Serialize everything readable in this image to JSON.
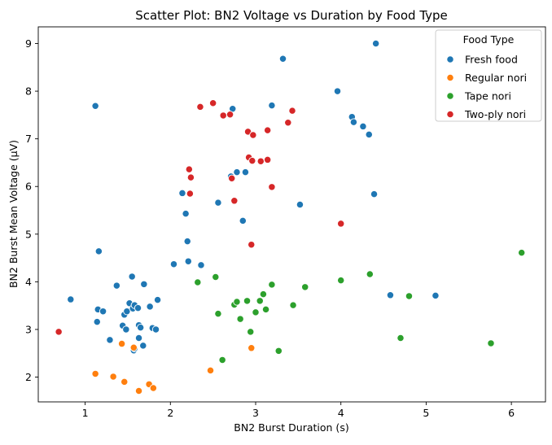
{
  "chart_data": {
    "type": "scatter",
    "title": "Scatter Plot: BN2 Voltage vs Duration by Food Type",
    "xlabel": "BN2 Burst Duration (s)",
    "ylabel": "BN2 Burst Mean Voltage (µV)",
    "xlim": [
      0.45,
      6.4
    ],
    "ylim": [
      1.48,
      9.35
    ],
    "xticks": [
      1,
      2,
      3,
      4,
      5,
      6
    ],
    "yticks": [
      2,
      3,
      4,
      5,
      6,
      7,
      8,
      9
    ],
    "grid": false,
    "legend": {
      "title": "Food Type",
      "placement": "top-right"
    },
    "series": [
      {
        "name": "Fresh food",
        "color": "#1f77b4",
        "points": [
          [
            0.83,
            3.63
          ],
          [
            1.12,
            7.69
          ],
          [
            1.14,
            3.16
          ],
          [
            1.15,
            3.42
          ],
          [
            1.16,
            4.64
          ],
          [
            1.21,
            3.38
          ],
          [
            1.29,
            2.78
          ],
          [
            1.37,
            3.92
          ],
          [
            1.44,
            3.08
          ],
          [
            1.46,
            3.31
          ],
          [
            1.48,
            3.0
          ],
          [
            1.49,
            3.38
          ],
          [
            1.52,
            3.55
          ],
          [
            1.55,
            4.11
          ],
          [
            1.56,
            3.44
          ],
          [
            1.57,
            2.56
          ],
          [
            1.58,
            2.6
          ],
          [
            1.58,
            3.51
          ],
          [
            1.62,
            3.45
          ],
          [
            1.63,
            3.09
          ],
          [
            1.63,
            2.82
          ],
          [
            1.65,
            3.04
          ],
          [
            1.68,
            2.66
          ],
          [
            1.69,
            3.95
          ],
          [
            1.76,
            3.48
          ],
          [
            1.79,
            3.03
          ],
          [
            1.83,
            3.0
          ],
          [
            1.85,
            3.62
          ],
          [
            2.04,
            4.37
          ],
          [
            2.14,
            5.86
          ],
          [
            2.18,
            5.43
          ],
          [
            2.2,
            4.85
          ],
          [
            2.21,
            4.43
          ],
          [
            2.36,
            4.35
          ],
          [
            2.56,
            5.66
          ],
          [
            2.71,
            6.21
          ],
          [
            2.73,
            7.63
          ],
          [
            2.78,
            6.3
          ],
          [
            2.85,
            5.28
          ],
          [
            2.88,
            6.3
          ],
          [
            3.19,
            7.7
          ],
          [
            3.32,
            8.68
          ],
          [
            3.52,
            5.62
          ],
          [
            3.96,
            8.0
          ],
          [
            4.13,
            7.46
          ],
          [
            4.15,
            7.35
          ],
          [
            4.26,
            7.26
          ],
          [
            4.33,
            7.09
          ],
          [
            4.39,
            5.84
          ],
          [
            4.41,
            9.0
          ],
          [
            4.58,
            3.72
          ],
          [
            5.11,
            3.71
          ]
        ]
      },
      {
        "name": "Regular nori",
        "color": "#ff7f0e",
        "points": [
          [
            1.12,
            2.07
          ],
          [
            1.33,
            2.01
          ],
          [
            1.43,
            2.7
          ],
          [
            1.46,
            1.9
          ],
          [
            1.57,
            2.62
          ],
          [
            1.63,
            1.71
          ],
          [
            1.75,
            1.85
          ],
          [
            1.8,
            1.77
          ],
          [
            2.47,
            2.14
          ],
          [
            2.95,
            2.61
          ]
        ]
      },
      {
        "name": "Tape nori",
        "color": "#2ca02c",
        "points": [
          [
            2.32,
            3.99
          ],
          [
            2.53,
            4.1
          ],
          [
            2.56,
            3.33
          ],
          [
            2.61,
            2.36
          ],
          [
            2.75,
            3.52
          ],
          [
            2.78,
            3.58
          ],
          [
            2.82,
            3.22
          ],
          [
            2.9,
            3.6
          ],
          [
            2.94,
            2.95
          ],
          [
            3.0,
            3.36
          ],
          [
            3.05,
            3.6
          ],
          [
            3.09,
            3.74
          ],
          [
            3.12,
            3.42
          ],
          [
            3.19,
            3.94
          ],
          [
            3.27,
            2.55
          ],
          [
            3.44,
            3.51
          ],
          [
            3.58,
            3.89
          ],
          [
            4.0,
            4.03
          ],
          [
            4.34,
            4.16
          ],
          [
            4.7,
            2.82
          ],
          [
            4.8,
            3.7
          ],
          [
            5.76,
            2.71
          ],
          [
            6.12,
            4.61
          ]
        ]
      },
      {
        "name": "Two-ply nori",
        "color": "#d62728",
        "points": [
          [
            0.69,
            2.95
          ],
          [
            2.22,
            6.36
          ],
          [
            2.23,
            5.85
          ],
          [
            2.24,
            6.19
          ],
          [
            2.35,
            7.67
          ],
          [
            2.5,
            7.75
          ],
          [
            2.62,
            7.49
          ],
          [
            2.7,
            7.51
          ],
          [
            2.72,
            6.17
          ],
          [
            2.75,
            5.7
          ],
          [
            2.91,
            7.15
          ],
          [
            2.92,
            6.61
          ],
          [
            2.95,
            4.78
          ],
          [
            2.96,
            6.54
          ],
          [
            2.97,
            7.08
          ],
          [
            3.06,
            6.53
          ],
          [
            3.14,
            6.56
          ],
          [
            3.14,
            7.18
          ],
          [
            3.19,
            5.99
          ],
          [
            3.38,
            7.34
          ],
          [
            3.43,
            7.59
          ],
          [
            4.0,
            5.22
          ]
        ]
      }
    ]
  }
}
